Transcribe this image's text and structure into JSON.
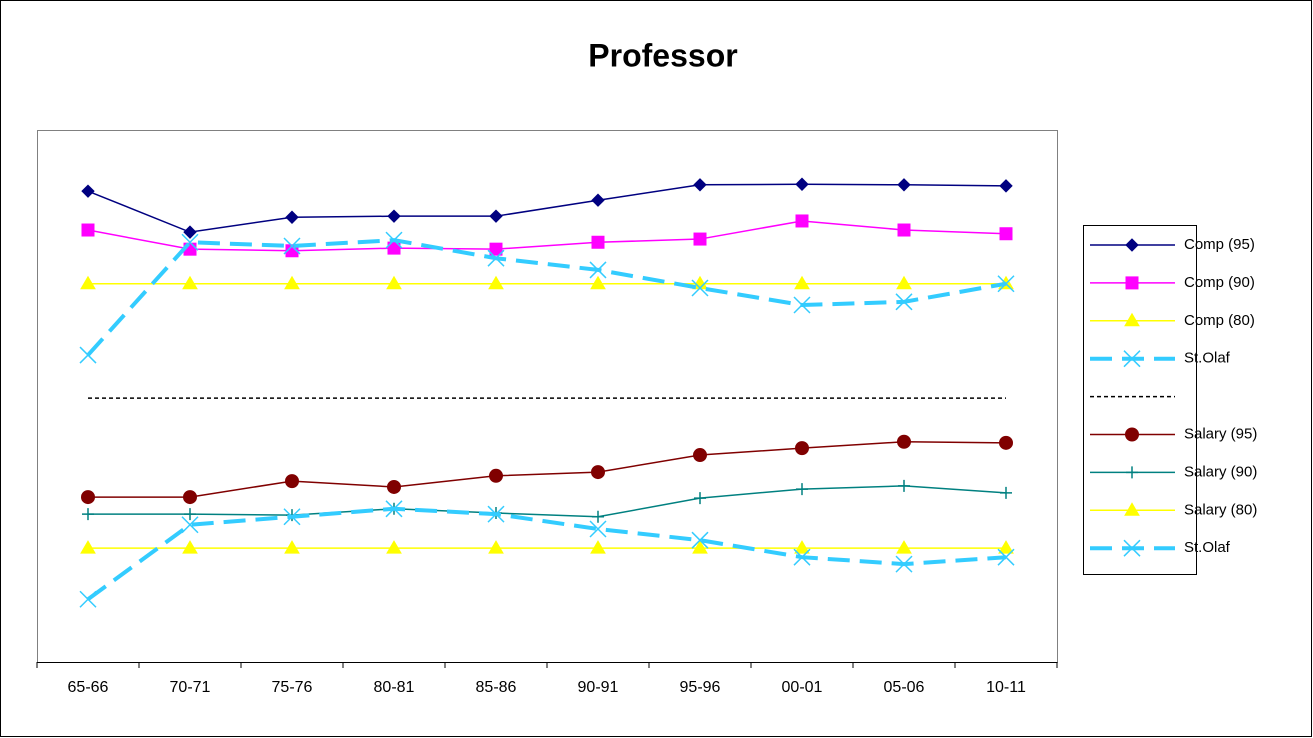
{
  "chart_data": {
    "type": "line",
    "title": "Professor",
    "categories": [
      "65-66",
      "70-71",
      "75-76",
      "80-81",
      "85-86",
      "90-91",
      "95-96",
      "00-01",
      "05-06",
      "10-11"
    ],
    "ylim": [
      0,
      100
    ],
    "series": [
      {
        "name": "Comp (95)",
        "color": "#000080",
        "marker": "diamond",
        "dash": false,
        "values": [
          88.5,
          80.8,
          83.6,
          83.8,
          83.8,
          86.8,
          89.7,
          89.8,
          89.7,
          89.5
        ]
      },
      {
        "name": "Comp (90)",
        "color": "#ff00ff",
        "marker": "square",
        "dash": false,
        "values": [
          81.2,
          77.6,
          77.3,
          77.8,
          77.6,
          78.9,
          79.5,
          82.9,
          81.2,
          80.5
        ]
      },
      {
        "name": "Comp (80)",
        "color": "#ffff00",
        "marker": "triangle",
        "dash": false,
        "values": [
          71.1,
          71.1,
          71.1,
          71.1,
          71.1,
          71.1,
          71.1,
          71.1,
          71.1,
          71.1
        ]
      },
      {
        "name": "St.Olaf",
        "color": "#33ccff",
        "marker": "x",
        "dash": true,
        "values": [
          57.7,
          78.9,
          78.2,
          79.3,
          75.9,
          73.7,
          70.3,
          67.1,
          67.7,
          71.1
        ]
      },
      {
        "name": null,
        "color": "#000000",
        "marker": "none",
        "dash": true,
        "values": [
          49.6,
          49.6,
          49.6,
          49.6,
          49.6,
          49.6,
          49.6,
          49.6,
          49.6,
          49.6
        ]
      },
      {
        "name": "Salary (95)",
        "color": "#800000",
        "marker": "circle",
        "dash": false,
        "values": [
          31.0,
          31.0,
          34.0,
          32.9,
          35.0,
          35.7,
          38.9,
          40.2,
          41.4,
          41.2
        ]
      },
      {
        "name": "Salary (90)",
        "color": "#008080",
        "marker": "plus",
        "dash": false,
        "values": [
          27.8,
          27.8,
          27.6,
          28.8,
          28.0,
          27.3,
          30.8,
          32.5,
          33.1,
          31.8
        ]
      },
      {
        "name": "Salary (80)",
        "color": "#ffff00",
        "marker": "triangle",
        "dash": false,
        "values": [
          21.4,
          21.4,
          21.4,
          21.4,
          21.4,
          21.4,
          21.4,
          21.4,
          21.4,
          21.4
        ]
      },
      {
        "name": "St.Olaf",
        "color": "#33ccff",
        "marker": "x",
        "dash": true,
        "values": [
          11.8,
          25.8,
          27.3,
          28.8,
          27.8,
          25.0,
          22.9,
          19.7,
          18.4,
          19.7
        ]
      }
    ]
  }
}
